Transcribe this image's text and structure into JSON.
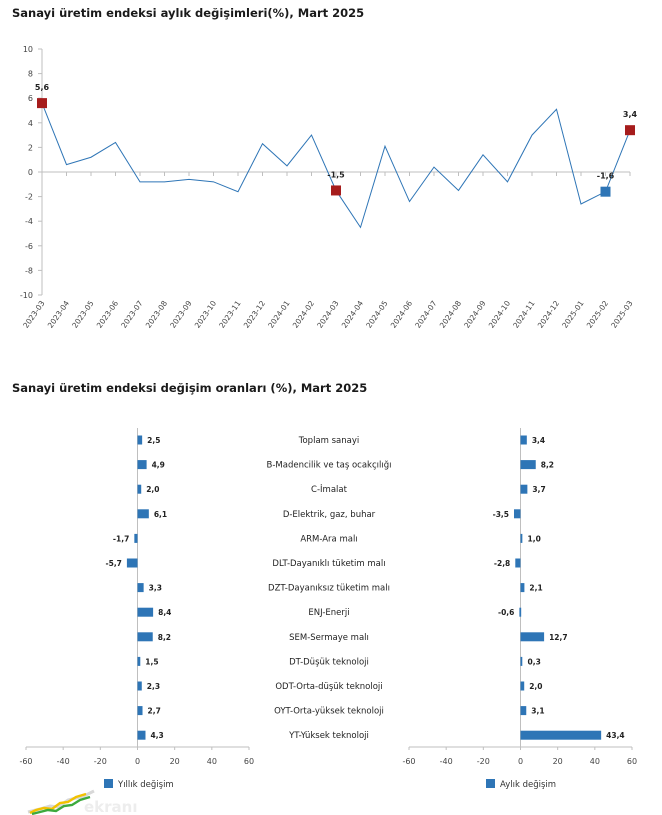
{
  "chart_data": [
    {
      "type": "line",
      "title": "Sanayi üretim endeksi aylık değişimleri(%), Mart 2025",
      "x": [
        "2023-03",
        "2023-04",
        "2023-05",
        "2023-06",
        "2023-07",
        "2023-08",
        "2023-09",
        "2023-10",
        "2023-11",
        "2023-12",
        "2024-01",
        "2024-02",
        "2024-03",
        "2024-04",
        "2024-05",
        "2024-06",
        "2024-07",
        "2024-08",
        "2024-09",
        "2024-10",
        "2024-11",
        "2024-12",
        "2025-01",
        "2025-02",
        "2025-03"
      ],
      "values": [
        5.6,
        0.6,
        1.2,
        2.4,
        -0.8,
        -0.8,
        -0.6,
        -0.8,
        -1.6,
        2.3,
        0.5,
        3.0,
        -1.5,
        -4.5,
        2.1,
        -2.4,
        0.4,
        -1.5,
        1.4,
        -0.8,
        3.0,
        5.1,
        -2.6,
        -1.6,
        3.4
      ],
      "highlighted_points": [
        {
          "x": "2023-03",
          "value": 5.6,
          "label": "5,6",
          "color": "#a61c1c"
        },
        {
          "x": "2024-03",
          "value": -1.5,
          "label": "-1,5",
          "color": "#a61c1c"
        },
        {
          "x": "2025-02",
          "value": -1.6,
          "label": "-1,6",
          "color": "#2e75b6"
        },
        {
          "x": "2025-03",
          "value": 3.4,
          "label": "3,4",
          "color": "#a61c1c"
        }
      ],
      "ylim": [
        -10,
        10
      ],
      "yticks": [
        10,
        8,
        6,
        4,
        2,
        0,
        -2,
        -4,
        -6,
        -8,
        -10
      ],
      "line_color": "#2e75b6",
      "grid": false
    },
    {
      "type": "bar",
      "orientation": "horizontal",
      "title": "Sanayi üretim endeksi değişim oranları (%), Mart 2025",
      "categories": [
        "Toplam sanayi",
        "B-Madencilik ve taş ocakçılığı",
        "C-İmalat",
        "D-Elektrik, gaz, buhar",
        "ARM-Ara malı",
        "DLT-Dayanıklı tüketim malı",
        "DZT-Dayanıksız tüketim malı",
        "ENJ-Enerji",
        "SEM-Sermaye malı",
        "DT-Düşük teknoloji",
        "ODT-Orta-düşük teknoloji",
        "OYT-Orta-yüksek teknoloji",
        "YT-Yüksek teknoloji"
      ],
      "series": [
        {
          "name": "Yıllık değişim",
          "values": [
            2.5,
            4.9,
            2.0,
            6.1,
            -1.7,
            -5.7,
            3.3,
            8.4,
            8.2,
            1.5,
            2.3,
            2.7,
            4.3
          ],
          "labels": [
            "2,5",
            "4,9",
            "2,0",
            "6,1",
            "-1,7",
            "-5,7",
            "3,3",
            "8,4",
            "8,2",
            "1,5",
            "2,3",
            "2,7",
            "4,3"
          ]
        },
        {
          "name": "Aylık değişim",
          "values": [
            3.4,
            8.2,
            3.7,
            -3.5,
            1.0,
            -2.8,
            2.1,
            -0.6,
            12.7,
            0.3,
            2.0,
            3.1,
            43.4
          ],
          "labels": [
            "3,4",
            "8,2",
            "3,7",
            "-3,5",
            "1,0",
            "-2,8",
            "2,1",
            "-0,6",
            "12,7",
            "0,3",
            "2,0",
            "3,1",
            "43,4"
          ]
        }
      ],
      "xlim": [
        -60,
        60
      ],
      "xticks": [
        "-60",
        "-40",
        "-20",
        "0",
        "20",
        "40",
        "60"
      ],
      "bar_color": "#2e75b6",
      "legend_position": "bottom",
      "grid": false
    }
  ],
  "watermark": {
    "text": "ekranı"
  }
}
